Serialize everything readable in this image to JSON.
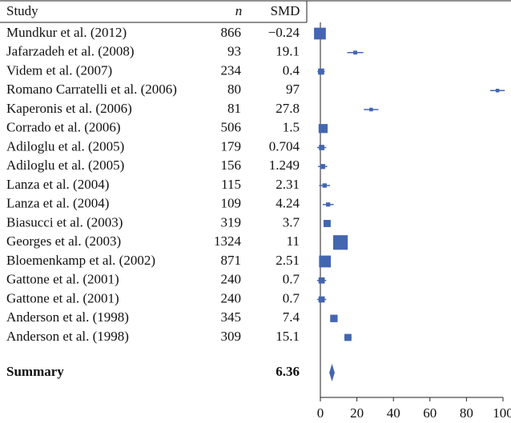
{
  "chart_data": {
    "type": "forest",
    "column_headers": [
      "Study",
      "n",
      "SMD"
    ],
    "categories": [
      "Mundkur et al. (2012)",
      "Jafarzadeh et al. (2008)",
      "Videm et al. (2007)",
      "Romano Carratelli et al. (2006)",
      "Kaperonis et al. (2006)",
      "Corrado et al. (2006)",
      "Adiloglu et al. (2005)",
      "Adiloglu et al. (2005)",
      "Lanza et al. (2004)",
      "Lanza et al. (2004)",
      "Biasucci et al. (2003)",
      "Georges et al. (2003)",
      "Bloemenkamp et al. (2002)",
      "Gattone et al. (2001)",
      "Gattone et al. (2001)",
      "Anderson et al. (1998)",
      "Anderson et al. (1998)"
    ],
    "n": [
      866,
      93,
      234,
      80,
      81,
      506,
      179,
      156,
      115,
      109,
      319,
      1324,
      871,
      240,
      240,
      345,
      309
    ],
    "values": [
      -0.24,
      19.1,
      0.4,
      97,
      27.8,
      1.5,
      0.704,
      1.249,
      2.31,
      4.24,
      3.7,
      11,
      2.51,
      0.7,
      0.7,
      7.4,
      15.1
    ],
    "value_labels": [
      "−0.24",
      "19.1",
      "0.4",
      "97",
      "27.8",
      "1.5",
      "0.704",
      "1.249",
      "2.31",
      "4.24",
      "3.7",
      "11",
      "2.51",
      "0.7",
      "0.7",
      "7.4",
      "15.1"
    ],
    "errors": [
      1,
      4.4,
      2,
      4,
      4,
      2,
      2.5,
      2.5,
      3,
      3,
      2,
      2,
      2,
      2.5,
      2.5,
      1.5,
      2
    ],
    "summary_label": "Summary",
    "summary_value": 6.36,
    "summary_error": 1.5,
    "color": "#4466b0",
    "xlim": [
      0,
      100
    ],
    "xticks": [
      0,
      20,
      40,
      60,
      80,
      100
    ]
  }
}
